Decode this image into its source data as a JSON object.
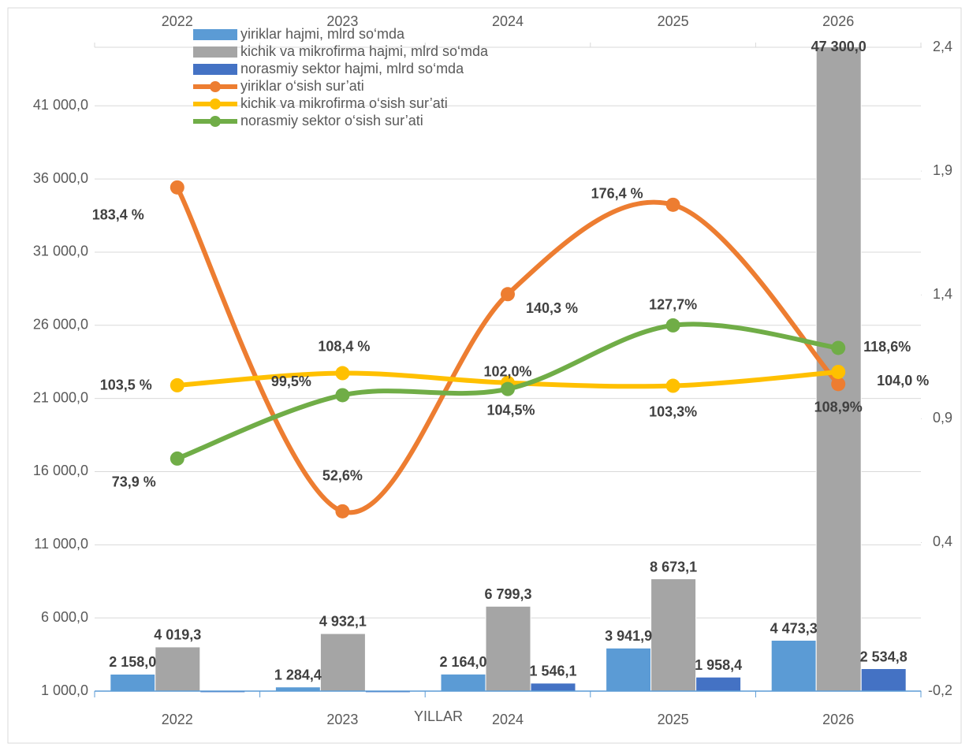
{
  "chart_data": {
    "type": "bar-line",
    "x_label": "YILLAR",
    "categories": [
      "2022",
      "2023",
      "2024",
      "2025",
      "2026"
    ],
    "ylim": [
      1000,
      45000
    ],
    "yticks": [
      {
        "value": 1000,
        "label": "1 000,0"
      },
      {
        "value": 6000,
        "label": "6 000,0"
      },
      {
        "value": 11000,
        "label": "11 000,0"
      },
      {
        "value": 16000,
        "label": "16 000,0"
      },
      {
        "value": 21000,
        "label": "21 000,0"
      },
      {
        "value": 26000,
        "label": "26 000,0"
      },
      {
        "value": 31000,
        "label": "31 000,0"
      },
      {
        "value": 36000,
        "label": "36 000,0"
      },
      {
        "value": 41000,
        "label": "41 000,0"
      }
    ],
    "y2lim": [
      -0.2,
      2.4
    ],
    "y2ticks": [
      {
        "value": -0.2,
        "label": "-0,2"
      },
      {
        "value": 0.4,
        "label": "0,4"
      },
      {
        "value": 0.9,
        "label": "0,9"
      },
      {
        "value": 1.4,
        "label": "1,4"
      },
      {
        "value": 1.9,
        "label": "1,9"
      },
      {
        "value": 2.4,
        "label": "2,4"
      }
    ],
    "grid": true,
    "series": [
      {
        "name": "yiriklar hajmi, mlrd so‘mda",
        "type": "bar",
        "color": "#5b9bd5",
        "values": [
          2158.0,
          1284.4,
          2164.0,
          3941.9,
          4473.3
        ],
        "value_labels": [
          "2 158,0",
          "1 284,4",
          "2 164,0",
          "3 941,9",
          "4 473,3"
        ]
      },
      {
        "name": "kichik va mikrofirma hajmi, mlrd so‘mda",
        "type": "bar",
        "color": "#a5a5a5",
        "values": [
          4019.3,
          4932.1,
          6799.3,
          8673.1,
          47300.0
        ],
        "value_labels": [
          "4 019,3",
          "4 932,1",
          "6 799,3",
          "8 673,1",
          "47 300,0"
        ]
      },
      {
        "name": "norasmiy sektor hajmi, mlrd so‘mda",
        "type": "bar",
        "color": "#4472c4",
        "values": [
          900,
          900,
          1546.1,
          1958.4,
          2534.8
        ],
        "value_labels": [
          null,
          null,
          "1 546,1",
          "1 958,4",
          "2 534,8"
        ]
      },
      {
        "name": "yiriklar o‘sish sur’ati",
        "type": "line",
        "axis": "y2",
        "color": "#ed7d31",
        "values": [
          1.834,
          0.526,
          1.403,
          1.764,
          1.04
        ],
        "value_labels": [
          "183,4 %",
          "52,6%",
          "140,3 %",
          "176,4 %",
          "104,0 %"
        ]
      },
      {
        "name": "kichik va mikrofirma o‘sish sur’ati",
        "type": "line",
        "axis": "y2",
        "color": "#ffc000",
        "values": [
          1.035,
          1.084,
          1.045,
          1.033,
          1.089
        ],
        "value_labels": [
          "103,5 %",
          "108,4 %",
          "104,5%",
          "103,3%",
          "108,9%"
        ]
      },
      {
        "name": "norasmiy sektor o‘sish sur’ati",
        "type": "line",
        "axis": "y2",
        "color": "#70ad47",
        "values": [
          0.739,
          0.995,
          1.02,
          1.277,
          1.186
        ],
        "value_labels": [
          "73,9 %",
          "99,5%",
          "102,0%",
          "127,7%",
          "118,6%"
        ]
      }
    ]
  }
}
